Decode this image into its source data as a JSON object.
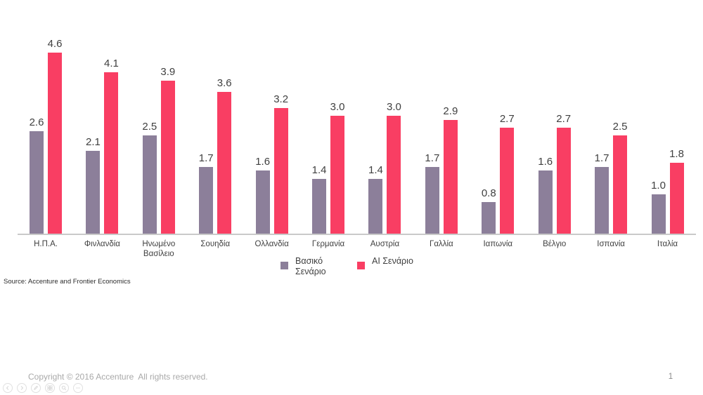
{
  "chart_data": {
    "type": "bar",
    "categories": [
      "Η.Π.Α.",
      "Φινλανδία",
      "Ηνωμένο Βασίλειο",
      "Σουηδία",
      "Ολλανδία",
      "Γερμανία",
      "Αυστρία",
      "Γαλλία",
      "Ιαπωνία",
      "Βέλγιο",
      "Ισπανία",
      "Ιταλία"
    ],
    "series": [
      {
        "name": "Βασικό Σενάριο",
        "color": "#8c7f9a",
        "values": [
          2.6,
          2.1,
          2.5,
          1.7,
          1.6,
          1.4,
          1.4,
          1.7,
          0.8,
          1.6,
          1.7,
          1.0
        ]
      },
      {
        "name": "AI Σενάριο",
        "color": "#f93e63",
        "values": [
          4.6,
          4.1,
          3.9,
          3.6,
          3.2,
          3.0,
          3.0,
          2.9,
          2.7,
          2.7,
          2.5,
          1.8
        ]
      }
    ],
    "title": "",
    "xlabel": "",
    "ylabel": "",
    "ylim": [
      0,
      4.6
    ],
    "grid": false,
    "value_labels": "one decimal above each bar",
    "legend_position": "bottom-center",
    "axis_line_color": "#c9c9c9"
  },
  "source_note": "Source: Accenture and Frontier Economics",
  "footer": {
    "copyright": "Copyright © 2016 Accenture  All rights reserved.",
    "page_number": "1"
  },
  "presenter_controls": {
    "icons": [
      "previous-slide-icon",
      "next-slide-icon",
      "pen-icon",
      "see-all-slides-icon",
      "zoom-icon",
      "more-options-icon"
    ],
    "icon_color": "#cfcfcf"
  }
}
